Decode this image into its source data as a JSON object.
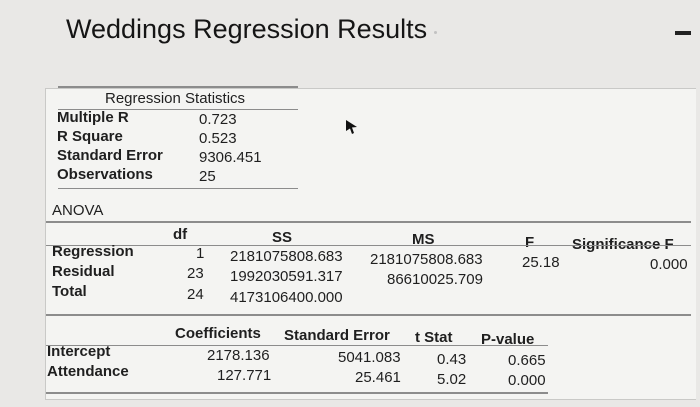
{
  "title": "Weddings Regression Results",
  "regression_statistics": {
    "header": "Regression Statistics",
    "rows": [
      {
        "label": "Multiple R",
        "value": "0.723"
      },
      {
        "label": "R Square",
        "value": "0.523"
      },
      {
        "label": "Standard Error",
        "value": "9306.451"
      },
      {
        "label": "Observations",
        "value": "25"
      }
    ]
  },
  "anova": {
    "label": "ANOVA",
    "headers": {
      "df": "df",
      "ss": "SS",
      "ms": "MS",
      "f": "F",
      "sigf": "Significance F"
    },
    "rows": [
      {
        "label": "Regression",
        "df": "1",
        "ss": "2181075808.683",
        "ms": "2181075808.683",
        "f": "25.18",
        "sigf": "0.000"
      },
      {
        "label": "Residual",
        "df": "23",
        "ss": "1992030591.317",
        "ms": "86610025.709"
      },
      {
        "label": "Total",
        "df": "24",
        "ss": "4173106400.000"
      }
    ]
  },
  "coefficients": {
    "headers": {
      "coef": "Coefficients",
      "se": "Standard Error",
      "t": "t Stat",
      "p": "P-value"
    },
    "rows": [
      {
        "label": "Intercept",
        "coef": "2178.136",
        "se": "5041.083",
        "t": "0.43",
        "p": "0.665"
      },
      {
        "label": "Attendance",
        "coef": "127.771",
        "se": "25.461",
        "t": "5.02",
        "p": "0.000"
      }
    ]
  }
}
